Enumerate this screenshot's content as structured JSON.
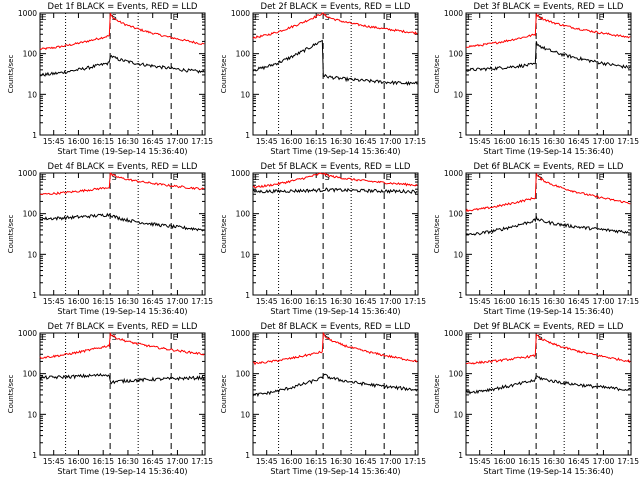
{
  "colors": {
    "black_series": "#000000",
    "red_series": "#ff0000",
    "axis": "#000000"
  },
  "shared": {
    "x_ticks": [
      "15:45",
      "16:00",
      "16:15",
      "16:30",
      "16:45",
      "17:00",
      "17:15"
    ],
    "x_label": "Start Time (19-Sep-14 15:36:40)",
    "y_label": "Counts/sec",
    "y_ticks": [
      "1",
      "10",
      "100",
      "1000"
    ],
    "flag_letters": [
      "E",
      "S",
      "E"
    ],
    "dotted_lines_min": [
      15.5,
      59.5
    ],
    "dashed_lines_min": [
      42.5,
      79.5
    ]
  },
  "chart_data": [
    {
      "type": "line",
      "title": "Det 1f BLACK = Events, RED = LLD",
      "xlim": [
        0,
        100
      ],
      "ylim": [
        1,
        1000
      ],
      "log_y": true,
      "red": {
        "start": 130,
        "peak_left": 280,
        "after_gap": 1000,
        "end": 170
      },
      "black": {
        "start": 30,
        "peak_left": 60,
        "after_gap": 95,
        "end": 35
      }
    },
    {
      "type": "line",
      "title": "Det 2f BLACK = Events, RED = LLD",
      "xlim": [
        0,
        100
      ],
      "ylim": [
        1,
        1000
      ],
      "log_y": true,
      "red": {
        "start": 250,
        "peak_left": 1000,
        "after_gap": 1000,
        "end": 320
      },
      "black": {
        "start": 40,
        "peak_left": 220,
        "after_gap": 30,
        "end": 18
      }
    },
    {
      "type": "line",
      "title": "Det 3f BLACK = Events, RED = LLD",
      "xlim": [
        0,
        100
      ],
      "ylim": [
        1,
        1000
      ],
      "log_y": true,
      "red": {
        "start": 150,
        "peak_left": 300,
        "after_gap": 1000,
        "end": 250
      },
      "black": {
        "start": 40,
        "peak_left": 55,
        "after_gap": 200,
        "end": 45
      }
    },
    {
      "type": "line",
      "title": "Det 4f BLACK = Events, RED = LLD",
      "xlim": [
        0,
        100
      ],
      "ylim": [
        1,
        1000
      ],
      "log_y": true,
      "red": {
        "start": 300,
        "peak_left": 450,
        "after_gap": 1000,
        "end": 400
      },
      "black": {
        "start": 75,
        "peak_left": 95,
        "after_gap": 100,
        "end": 40
      }
    },
    {
      "type": "line",
      "title": "Det 5f BLACK = Events, RED = LLD",
      "xlim": [
        0,
        100
      ],
      "ylim": [
        1,
        1000
      ],
      "log_y": true,
      "red": {
        "start": 450,
        "peak_left": 1000,
        "after_gap": 1000,
        "end": 500
      },
      "black": {
        "start": 350,
        "peak_left": 380,
        "after_gap": 400,
        "end": 350
      }
    },
    {
      "type": "line",
      "title": "Det 6f BLACK = Events, RED = LLD",
      "xlim": [
        0,
        100
      ],
      "ylim": [
        1,
        1000
      ],
      "log_y": true,
      "red": {
        "start": 120,
        "peak_left": 250,
        "after_gap": 1000,
        "end": 180
      },
      "black": {
        "start": 30,
        "peak_left": 70,
        "after_gap": 80,
        "end": 35
      }
    },
    {
      "type": "line",
      "title": "Det 7f BLACK = Events, RED = LLD",
      "xlim": [
        0,
        100
      ],
      "ylim": [
        1,
        1000
      ],
      "log_y": true,
      "red": {
        "start": 250,
        "peak_left": 500,
        "after_gap": 1000,
        "end": 300
      },
      "black": {
        "start": 80,
        "peak_left": 95,
        "after_gap": 60,
        "end": 80
      }
    },
    {
      "type": "line",
      "title": "Det 8f BLACK = Events, RED = LLD",
      "xlim": [
        0,
        100
      ],
      "ylim": [
        1,
        1000
      ],
      "log_y": true,
      "red": {
        "start": 180,
        "peak_left": 350,
        "after_gap": 1000,
        "end": 200
      },
      "black": {
        "start": 30,
        "peak_left": 80,
        "after_gap": 100,
        "end": 40
      }
    },
    {
      "type": "line",
      "title": "Det 9f BLACK = Events, RED = LLD",
      "xlim": [
        0,
        100
      ],
      "ylim": [
        1,
        1000
      ],
      "log_y": true,
      "red": {
        "start": 180,
        "peak_left": 280,
        "after_gap": 1000,
        "end": 200
      },
      "black": {
        "start": 35,
        "peak_left": 70,
        "after_gap": 90,
        "end": 40
      }
    }
  ]
}
